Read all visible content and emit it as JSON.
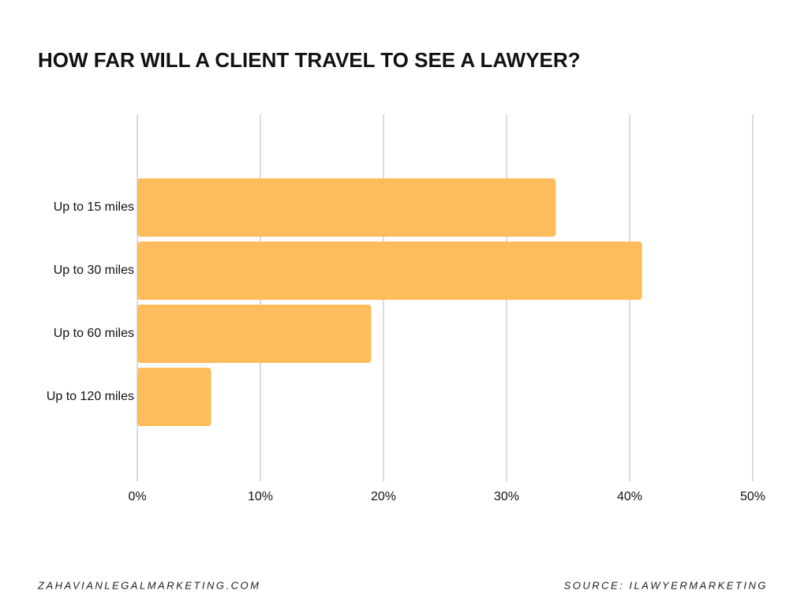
{
  "chart_data": {
    "type": "bar",
    "orientation": "horizontal",
    "title": "HOW FAR WILL A CLIENT TRAVEL TO SEE A LAWYER?",
    "categories": [
      "Up to 15 miles",
      "Up to 30 miles",
      "Up to 60 miles",
      "Up to 120 miles"
    ],
    "values": [
      34,
      41,
      19,
      6
    ],
    "color": "#fdbd5c",
    "xlim": [
      0,
      50
    ],
    "xticks": [
      {
        "value": 0,
        "label": "0%"
      },
      {
        "value": 10,
        "label": "10%"
      },
      {
        "value": 20,
        "label": "20%"
      },
      {
        "value": 30,
        "label": "30%"
      },
      {
        "value": 40,
        "label": "40%"
      },
      {
        "value": 50,
        "label": "50%"
      }
    ],
    "grid": true,
    "website": "ZAHAVIANLEGALMARKETING.COM",
    "source": "SOURCE: ILAWYERMARKETING"
  }
}
